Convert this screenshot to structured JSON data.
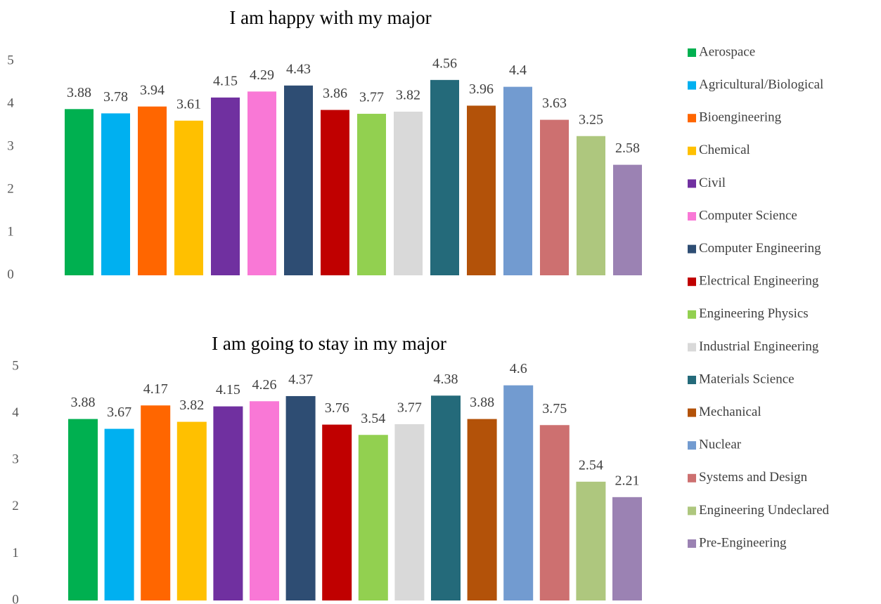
{
  "chart_data": [
    {
      "type": "bar",
      "title": "I am happy with my major",
      "values": [
        3.88,
        3.78,
        3.94,
        3.61,
        4.15,
        4.29,
        4.43,
        3.86,
        3.77,
        3.82,
        4.56,
        3.96,
        4.4,
        3.63,
        3.25,
        2.58
      ],
      "ylim": [
        0,
        5
      ],
      "yticks": [
        0,
        1,
        2,
        3,
        4,
        5
      ]
    },
    {
      "type": "bar",
      "title": "I am going to stay in my major",
      "values": [
        3.88,
        3.67,
        4.17,
        3.82,
        4.15,
        4.26,
        4.37,
        3.76,
        3.54,
        3.77,
        4.38,
        3.88,
        4.6,
        3.75,
        2.54,
        2.21
      ],
      "ylim": [
        0,
        5
      ],
      "yticks": [
        0,
        1,
        2,
        3,
        4,
        5
      ]
    }
  ],
  "legend": {
    "labels": [
      "Aerospace",
      "Agricultural/Biological",
      "Bioengineering",
      "Chemical",
      "Civil",
      "Computer Science",
      "Computer Engineering",
      "Electrical Engineering",
      "Engineering Physics",
      "Industrial Engineering",
      "Materials Science",
      "Mechanical",
      "Nuclear",
      "Systems and Design",
      "Engineering Undeclared",
      "Pre-Engineering"
    ],
    "colors": [
      "#00b050",
      "#00b0f0",
      "#ff6600",
      "#ffc000",
      "#7030a0",
      "#f978d6",
      "#2e4d73",
      "#c00000",
      "#92d050",
      "#d9d9d9",
      "#246a7a",
      "#b35209",
      "#729bd0",
      "#cd7070",
      "#aec77e",
      "#9b82b3"
    ]
  }
}
